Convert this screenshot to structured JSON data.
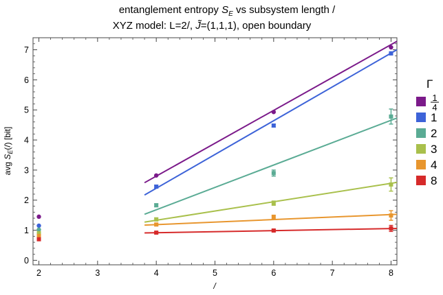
{
  "chart_data": {
    "type": "scatter",
    "title_lines": [
      "entanglement entropy Sₑ vs subsystem length /",
      "XYZ model: L=2/, J̃=(1,1,1), open boundary"
    ],
    "title_line1_prefix": "entanglement entropy ",
    "title_line1_symbol": "S",
    "title_line1_subscript": "E",
    "title_line1_suffix": " vs subsystem length /",
    "title_line2_prefix": "XYZ model: L=2/, ",
    "title_line2_symbol": "J̃",
    "title_line2_suffix": "=(1,1,1), open boundary",
    "xlabel": "/",
    "ylabel": "avg Sₑ(/) [bit]",
    "ylabel_prefix": "avg ",
    "ylabel_symbol": "S",
    "ylabel_subscript": "E",
    "ylabel_suffix": "(/) [bit]",
    "xlim": [
      1.9,
      8.1
    ],
    "ylim": [
      -0.15,
      7.4
    ],
    "xticks": [
      2,
      3,
      4,
      5,
      6,
      7,
      8
    ],
    "yticks": [
      0,
      1,
      2,
      3,
      4,
      5,
      6,
      7
    ],
    "grid": false,
    "legend": {
      "title": "Γ",
      "placement": "right",
      "labels": [
        "1/4",
        "1",
        "2",
        "3",
        "4",
        "8"
      ]
    },
    "series": [
      {
        "name": "1/4",
        "color": "#7b1a8a",
        "points": [
          {
            "x": 2,
            "y": 1.45,
            "err": 0.0
          },
          {
            "x": 4,
            "y": 2.82,
            "err": 0.0
          },
          {
            "x": 6,
            "y": 4.93,
            "err": 0.0
          },
          {
            "x": 8,
            "y": 7.08,
            "err": 0.0
          }
        ],
        "fit": {
          "x": [
            3.8,
            8.1
          ],
          "y": [
            2.58,
            7.28
          ]
        }
      },
      {
        "name": "1",
        "color": "#3d63d8",
        "points": [
          {
            "x": 2,
            "y": 1.15,
            "err": 0.0
          },
          {
            "x": 4,
            "y": 2.45,
            "err": 0.05
          },
          {
            "x": 6,
            "y": 4.48,
            "err": 0.05
          },
          {
            "x": 8,
            "y": 6.88,
            "err": 0.05
          }
        ],
        "fit": {
          "x": [
            3.8,
            8.1
          ],
          "y": [
            2.17,
            7.0
          ]
        }
      },
      {
        "name": "2",
        "color": "#5aab94",
        "points": [
          {
            "x": 2,
            "y": 1.02,
            "err": 0.0
          },
          {
            "x": 4,
            "y": 1.83,
            "err": 0.05
          },
          {
            "x": 6,
            "y": 2.9,
            "err": 0.1
          },
          {
            "x": 8,
            "y": 4.78,
            "err": 0.25
          }
        ],
        "fit": {
          "x": [
            3.8,
            8.1
          ],
          "y": [
            1.53,
            4.73
          ]
        }
      },
      {
        "name": "3",
        "color": "#a9c04c",
        "points": [
          {
            "x": 2,
            "y": 0.9,
            "err": 0.0
          },
          {
            "x": 4,
            "y": 1.36,
            "err": 0.05
          },
          {
            "x": 6,
            "y": 1.9,
            "err": 0.07
          },
          {
            "x": 8,
            "y": 2.52,
            "err": 0.22
          }
        ],
        "fit": {
          "x": [
            3.8,
            8.1
          ],
          "y": [
            1.27,
            2.59
          ]
        }
      },
      {
        "name": "4",
        "color": "#e8962e",
        "points": [
          {
            "x": 2,
            "y": 0.81,
            "err": 0.0
          },
          {
            "x": 4,
            "y": 1.19,
            "err": 0.04
          },
          {
            "x": 6,
            "y": 1.43,
            "err": 0.07
          },
          {
            "x": 8,
            "y": 1.49,
            "err": 0.16
          }
        ],
        "fit": {
          "x": [
            3.8,
            8.1
          ],
          "y": [
            1.17,
            1.53
          ]
        }
      },
      {
        "name": "8",
        "color": "#d62a2a",
        "points": [
          {
            "x": 2,
            "y": 0.7,
            "err": 0.0
          },
          {
            "x": 4,
            "y": 0.92,
            "err": 0.03
          },
          {
            "x": 6,
            "y": 0.99,
            "err": 0.04
          },
          {
            "x": 8,
            "y": 1.06,
            "err": 0.1
          }
        ],
        "fit": {
          "x": [
            3.8,
            8.1
          ],
          "y": [
            0.91,
            1.06
          ]
        }
      }
    ]
  }
}
